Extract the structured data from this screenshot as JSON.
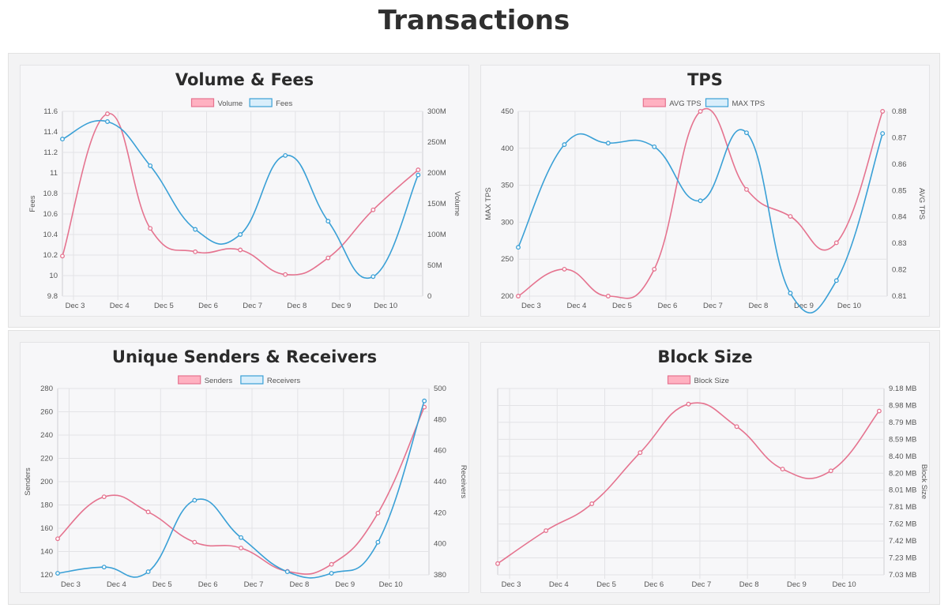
{
  "page": {
    "title": "Transactions"
  },
  "colors": {
    "pink": "#e5738f",
    "pink_fill": "#ffb1c1",
    "blue": "#3aa0d6",
    "blue_fill": "#d9eefb",
    "grid": "#e3e3e6"
  },
  "chart_data": [
    {
      "id": "volume-fees",
      "type": "line",
      "title": "Volume & Fees",
      "categories": [
        "Dec 3",
        "Dec 4",
        "Dec 5",
        "Dec 6",
        "Dec 7",
        "Dec 8",
        "Dec 9",
        "Dec 10"
      ],
      "y_left": {
        "label": "Fees",
        "ticks": [
          "11.6",
          "11.4",
          "11.2",
          "11",
          "10.8",
          "10.6",
          "10.4",
          "10.2",
          "10",
          "9.8"
        ],
        "min": 9.8,
        "max": 11.6
      },
      "y_right": {
        "label": "Volume",
        "ticks": [
          "300M",
          "250M",
          "200M",
          "150M",
          "100M",
          "50M",
          "0"
        ],
        "min": 0,
        "max": 300000000
      },
      "series": [
        {
          "name": "Volume",
          "axis": "right",
          "color": "pink",
          "x": [
            0.0,
            1.0,
            1.95,
            2.95,
            3.95,
            4.95,
            5.9,
            6.9,
            7.9
          ],
          "values": [
            65000000,
            296000000,
            110000000,
            72000000,
            75000000,
            35000000,
            62000000,
            140000000,
            205000000
          ]
        },
        {
          "name": "Fees",
          "axis": "left",
          "color": "blue",
          "x": [
            0.0,
            1.0,
            1.95,
            2.95,
            3.95,
            4.95,
            5.9,
            6.9,
            7.9
          ],
          "values": [
            11.33,
            11.5,
            11.07,
            10.45,
            10.4,
            11.17,
            10.53,
            9.99,
            10.98
          ]
        }
      ]
    },
    {
      "id": "tps",
      "type": "line",
      "title": "TPS",
      "categories": [
        "Dec 3",
        "Dec 4",
        "Dec 5",
        "Dec 6",
        "Dec 7",
        "Dec 8",
        "Dec 9",
        "Dec 10"
      ],
      "y_left": {
        "label": "MAX TPS",
        "ticks": [
          "450",
          "400",
          "350",
          "300",
          "250",
          "200"
        ],
        "min": 200,
        "max": 450
      },
      "y_right": {
        "label": "AVG TPS",
        "ticks": [
          "0.88",
          "0.87",
          "0.86",
          "0.85",
          "0.84",
          "0.83",
          "0.82",
          "0.81"
        ],
        "min": 0.81,
        "max": 0.88
      },
      "series": [
        {
          "name": "AVG TPS",
          "axis": "right",
          "color": "pink",
          "x": [
            0.0,
            1.0,
            1.95,
            2.95,
            3.95,
            4.95,
            5.9,
            6.9,
            7.9
          ],
          "values": [
            0.81,
            0.8202,
            0.81,
            0.8202,
            0.88,
            0.8504,
            0.8402,
            0.8302,
            0.88
          ]
        },
        {
          "name": "MAX TPS",
          "axis": "left",
          "color": "blue",
          "x": [
            0.0,
            1.0,
            1.95,
            2.95,
            3.95,
            4.95,
            5.9,
            6.9,
            7.9
          ],
          "values": [
            266,
            405,
            407,
            402,
            329,
            421,
            204,
            221,
            420
          ]
        }
      ]
    },
    {
      "id": "senders-receivers",
      "type": "line",
      "title": "Unique Senders & Receivers",
      "categories": [
        "Dec 3",
        "Dec 4",
        "Dec 5",
        "Dec 6",
        "Dec 7",
        "Dec 8",
        "Dec 9",
        "Dec 10"
      ],
      "y_left": {
        "label": "Senders",
        "ticks": [
          "280",
          "260",
          "240",
          "220",
          "200",
          "180",
          "160",
          "140",
          "120"
        ],
        "min": 120,
        "max": 280
      },
      "y_right": {
        "label": "Receivers",
        "ticks": [
          "500",
          "480",
          "460",
          "440",
          "420",
          "400",
          "380"
        ],
        "min": 380,
        "max": 500
      },
      "series": [
        {
          "name": "Senders",
          "axis": "left",
          "color": "pink",
          "x": [
            0.0,
            1.0,
            1.95,
            2.95,
            3.95,
            4.95,
            5.9,
            6.9,
            7.9
          ],
          "values": [
            151,
            187,
            174,
            148,
            143,
            123,
            129,
            173,
            264
          ]
        },
        {
          "name": "Receivers",
          "axis": "right",
          "color": "blue",
          "x": [
            0.0,
            1.0,
            1.95,
            2.95,
            3.95,
            4.95,
            5.9,
            6.9,
            7.9
          ],
          "values": [
            381,
            385,
            382,
            428,
            404,
            382,
            381,
            401,
            492
          ]
        }
      ]
    },
    {
      "id": "block-size",
      "type": "line",
      "title": "Block Size",
      "categories": [
        "Dec 3",
        "Dec 4",
        "Dec 5",
        "Dec 6",
        "Dec 7",
        "Dec 8",
        "Dec 9",
        "Dec 10"
      ],
      "y_left": null,
      "y_right": {
        "label": "Block Size",
        "ticks": [
          "9.18 MB",
          "8.98 MB",
          "8.79 MB",
          "8.59 MB",
          "8.40 MB",
          "8.20 MB",
          "8.01 MB",
          "7.81 MB",
          "7.62 MB",
          "7.42 MB",
          "7.23 MB",
          "7.03 MB"
        ],
        "min": 7.03,
        "max": 9.18
      },
      "series": [
        {
          "name": "Block Size",
          "axis": "right",
          "color": "pink",
          "x": [
            0.0,
            1.0,
            1.95,
            2.95,
            3.95,
            4.95,
            5.9,
            6.9,
            7.9
          ],
          "values": [
            7.16,
            7.54,
            7.85,
            8.44,
            9.0,
            8.74,
            8.25,
            8.23,
            8.92
          ]
        }
      ]
    }
  ]
}
